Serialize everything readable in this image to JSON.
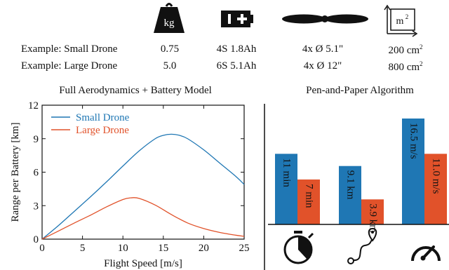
{
  "spec_table": {
    "icons": [
      "weight-icon",
      "battery-icon",
      "propeller-icon",
      "area-icon"
    ],
    "weight_icon_text": "kg",
    "area_icon_text": "m",
    "area_icon_sup": "2",
    "rows": [
      {
        "label": "Example: Small Drone",
        "mass": "0.75",
        "battery": "4S 1.8Ah",
        "props": "4x Ø 5.1\"",
        "area": "200 cm",
        "area_sup": "2"
      },
      {
        "label": "Example: Large Drone",
        "mass": "5.0",
        "battery": "6S 5.1Ah",
        "props": "4x Ø 12\"",
        "area": "800 cm",
        "area_sup": "2"
      }
    ]
  },
  "left_title": "Full Aerodynamics + Battery Model",
  "right_title": "Pen-and-Paper Algorithm",
  "colors": {
    "small": "#1f77b4",
    "large": "#e1522a",
    "axis": "#111111"
  },
  "chart_data": [
    {
      "type": "line",
      "title": "Full Aerodynamics + Battery Model",
      "xlabel": "Flight Speed [m/s]",
      "ylabel": "Range per Battery [km]",
      "xlim": [
        0,
        25
      ],
      "ylim": [
        0,
        12
      ],
      "xticks": [
        "0",
        "5",
        "10",
        "15",
        "20",
        "25"
      ],
      "yticks": [
        "0",
        "3",
        "6",
        "9",
        "12"
      ],
      "grid": false,
      "legend": "top-left",
      "series": [
        {
          "name": "Small Drone",
          "color": "#1f77b4",
          "x": [
            0,
            2,
            4,
            6,
            8,
            10,
            12,
            14,
            15,
            16,
            17,
            18,
            20,
            22,
            24,
            25
          ],
          "y": [
            0,
            1.2,
            2.5,
            3.8,
            5.15,
            6.55,
            7.9,
            9.0,
            9.3,
            9.4,
            9.3,
            9.0,
            8.0,
            6.8,
            5.6,
            4.9
          ]
        },
        {
          "name": "Large Drone",
          "color": "#e1522a",
          "x": [
            0,
            2,
            4,
            6,
            8,
            10,
            11,
            12,
            14,
            16,
            18,
            20,
            22,
            24,
            25
          ],
          "y": [
            0,
            0.72,
            1.45,
            2.15,
            2.9,
            3.55,
            3.7,
            3.65,
            3.05,
            2.2,
            1.45,
            0.95,
            0.6,
            0.35,
            0.25
          ]
        }
      ]
    },
    {
      "type": "bar",
      "title": "Pen-and-Paper Algorithm",
      "legend": "none",
      "groups": [
        {
          "icon": "stopwatch-icon",
          "bars": [
            {
              "series": "Small Drone",
              "value": 11,
              "label": "11 min"
            },
            {
              "series": "Large Drone",
              "value": 7,
              "label": "7 min"
            }
          ]
        },
        {
          "icon": "route-icon",
          "bars": [
            {
              "series": "Small Drone",
              "value": 9.1,
              "label": "9.1 km"
            },
            {
              "series": "Large Drone",
              "value": 3.9,
              "label": "3.9 km"
            }
          ]
        },
        {
          "icon": "speedometer-icon",
          "bars": [
            {
              "series": "Small Drone",
              "value": 16.5,
              "label": "16.5 m/s"
            },
            {
              "series": "Large Drone",
              "value": 11.0,
              "label": "11.0 m/s"
            }
          ]
        }
      ]
    }
  ]
}
